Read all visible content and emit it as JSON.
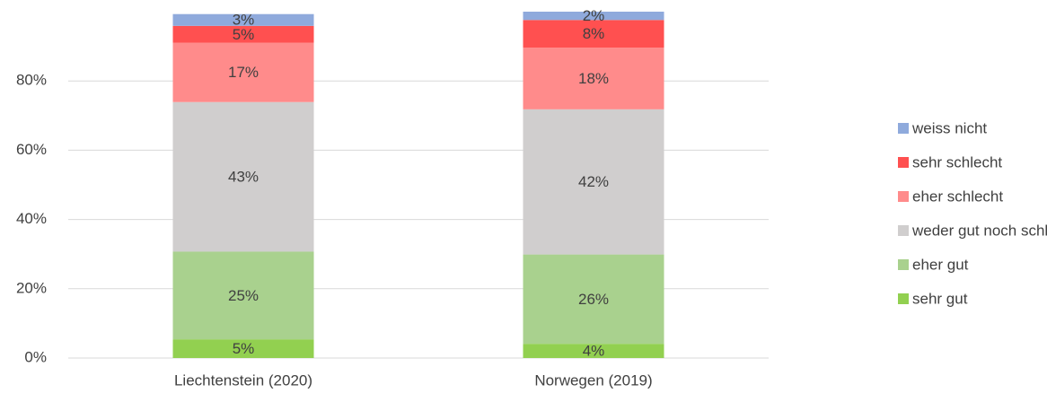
{
  "chart_data": {
    "type": "stacked_bar",
    "categories": [
      "Liechtenstein (2020)",
      "Norwegen (2019)"
    ],
    "series": [
      {
        "name": "sehr gut",
        "color": "#92d050",
        "values": [
          5.4,
          4.1
        ],
        "value_labels": [
          "5%",
          "4%"
        ]
      },
      {
        "name": "eher gut",
        "color": "#a9d18e",
        "values": [
          25.3,
          25.8
        ],
        "value_labels": [
          "25%",
          "26%"
        ]
      },
      {
        "name": "weder gut noch schlecht",
        "color": "#d0cece",
        "values": [
          43.2,
          41.9
        ],
        "value_labels": [
          "43%",
          "42%"
        ]
      },
      {
        "name": "eher schlecht",
        "color": "#ff8b8b",
        "values": [
          17.1,
          17.8
        ],
        "value_labels": [
          "17%",
          "18%"
        ]
      },
      {
        "name": "sehr schlecht",
        "color": "#ff5050",
        "values": [
          4.9,
          8.0
        ],
        "value_labels": [
          "5%",
          "8%"
        ]
      },
      {
        "name": "weiss nicht",
        "color": "#8faadc",
        "values": [
          3.4,
          2.4
        ],
        "value_labels": [
          "3%",
          "2%"
        ]
      }
    ],
    "ylim": [
      0,
      100
    ],
    "yticks": [
      {
        "value": 0,
        "label": "0%"
      },
      {
        "value": 20,
        "label": "20%"
      },
      {
        "value": 40,
        "label": "40%"
      },
      {
        "value": 60,
        "label": "60%"
      },
      {
        "value": 80,
        "label": "80%"
      }
    ],
    "grid": true,
    "legend": "right"
  }
}
